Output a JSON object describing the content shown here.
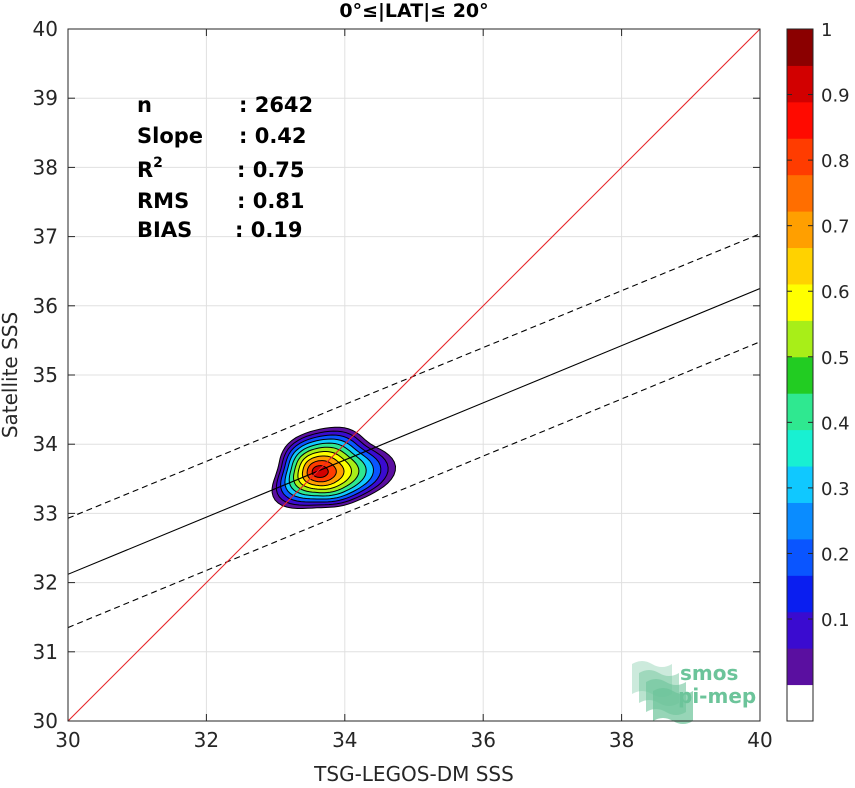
{
  "chart_data": {
    "type": "heatmap",
    "title": "0°≤|LAT|≤ 20°",
    "xlabel": "TSG-LEGOS-DM SSS",
    "ylabel": "Satellite SSS",
    "xlim": [
      30,
      40
    ],
    "ylim": [
      30,
      40
    ],
    "xticks": [
      30,
      32,
      34,
      36,
      38,
      40
    ],
    "yticks": [
      30,
      31,
      32,
      33,
      34,
      35,
      36,
      37,
      38,
      39,
      40
    ],
    "grid": true,
    "stats": [
      {
        "label": "n",
        "value": ": 2642"
      },
      {
        "label": "Slope",
        "value": ": 0.42"
      },
      {
        "label": "R",
        "sup": "2",
        "value": ": 0.75"
      },
      {
        "label": "RMS",
        "value": ": 0.81"
      },
      {
        "label": "BIAS",
        "value": ": 0.19"
      }
    ],
    "lines": {
      "identity": {
        "x": [
          30,
          40
        ],
        "y": [
          30,
          40
        ],
        "color": "#e8262b"
      },
      "regression": {
        "x": [
          30,
          40
        ],
        "y": [
          32.12,
          36.25
        ],
        "color": "#000000"
      },
      "upper_bound": {
        "x": [
          30,
          40
        ],
        "y": [
          32.93,
          37.04
        ],
        "color": "#000000",
        "style": "dashed"
      },
      "lower_bound": {
        "x": [
          30,
          40
        ],
        "y": [
          31.35,
          35.48
        ],
        "color": "#000000",
        "style": "dashed"
      }
    },
    "density": {
      "center": [
        33.62,
        33.6
      ],
      "levels": [
        0.05,
        0.1,
        0.2,
        0.3,
        0.4,
        0.5,
        0.6,
        0.7,
        0.8,
        0.9
      ],
      "outer_extent": {
        "x": [
          32.97,
          34.6
        ],
        "y": [
          33.02,
          34.24
        ]
      }
    },
    "colorbar": {
      "ticks": [
        0.1,
        0.2,
        0.3,
        0.4,
        0.5,
        0.6,
        0.7,
        0.8,
        0.9,
        1
      ],
      "tick_labels": [
        "0.1",
        "0.2",
        "0.3",
        "0.4",
        "0.5",
        "0.6",
        "0.7",
        "0.8",
        "0.9",
        "1"
      ],
      "range": [
        0,
        1
      ],
      "colors": [
        "#ffffff",
        "#5a0fa0",
        "#3a0bd0",
        "#0a1ef0",
        "#0a55ff",
        "#0a8cff",
        "#10c8ff",
        "#18f0d2",
        "#2fe890",
        "#22cc22",
        "#a8ee18",
        "#ffff00",
        "#ffd200",
        "#ff9f00",
        "#ff6e00",
        "#ff3c00",
        "#ff0a00",
        "#d20000",
        "#8b0000"
      ]
    }
  },
  "logo": {
    "line1": "smos",
    "line2": "pi-mep",
    "color": "#6cc49a"
  }
}
